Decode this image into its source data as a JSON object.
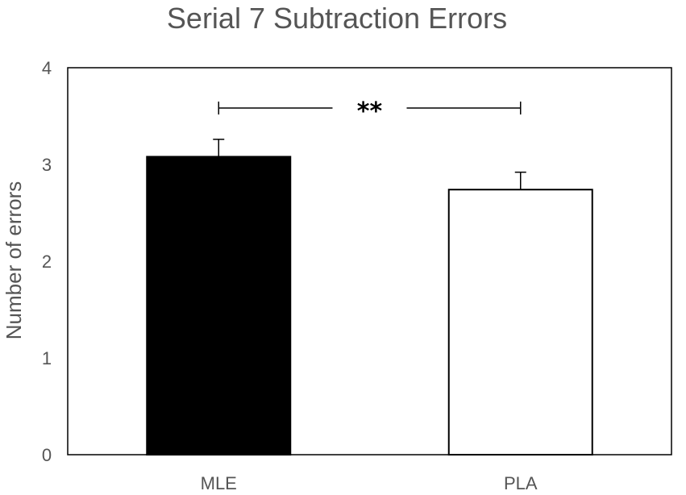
{
  "chart_data": {
    "type": "bar",
    "title": "Serial 7 Subtraction Errors",
    "xlabel": "",
    "ylabel": "Number of errors",
    "ylim": [
      0,
      4
    ],
    "yticks": [
      "0",
      "1",
      "2",
      "3",
      "4"
    ],
    "categories": [
      "MLE",
      "PLA"
    ],
    "values": [
      3.08,
      2.74
    ],
    "error": [
      0.18,
      0.18
    ],
    "bar_colors": [
      "#000000",
      "#ffffff"
    ],
    "grid": false,
    "significance": {
      "between": [
        "MLE",
        "PLA"
      ],
      "label": "**"
    }
  }
}
